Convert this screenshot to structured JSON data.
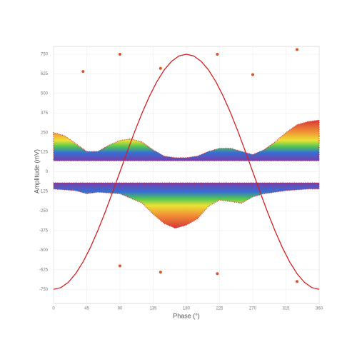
{
  "chart_data": {
    "type": "area",
    "xlabel": "Phase (°)",
    "ylabel": "Amplitude (mV)",
    "xlim": [
      0,
      360
    ],
    "xticks": [
      0,
      45,
      90,
      135,
      180,
      225,
      270,
      315,
      360
    ],
    "ylim": [
      -840,
      800
    ],
    "yticks": [
      750,
      625,
      500,
      375,
      250,
      125,
      0,
      -125,
      -250,
      -375,
      -500,
      -625,
      -750
    ],
    "grid": true,
    "series": [
      {
        "type": "area",
        "color": "#d42020",
        "floor": 70,
        "x": [
          0,
          15,
          30,
          45,
          60,
          75,
          90,
          105,
          120,
          135,
          150,
          165,
          180,
          195,
          210,
          225,
          240,
          255,
          270,
          285,
          300,
          315,
          330,
          345,
          360
        ],
        "values": [
          250,
          230,
          180,
          130,
          130,
          170,
          200,
          210,
          190,
          140,
          100,
          90,
          90,
          100,
          130,
          150,
          150,
          130,
          110,
          140,
          190,
          250,
          300,
          320,
          330
        ]
      },
      {
        "type": "area",
        "color": "#d42020",
        "floor": -70,
        "x": [
          0,
          15,
          30,
          45,
          60,
          75,
          90,
          105,
          120,
          135,
          150,
          165,
          180,
          195,
          210,
          225,
          240,
          255,
          270,
          285,
          300,
          315,
          330,
          345,
          360
        ],
        "values": [
          -110,
          -115,
          -120,
          -140,
          -130,
          -135,
          -140,
          -170,
          -200,
          -270,
          -330,
          -360,
          -340,
          -300,
          -220,
          -180,
          -190,
          -200,
          -160,
          -140,
          -130,
          -120,
          -115,
          -110,
          -110
        ]
      },
      {
        "type": "scatter",
        "color": "#e05020",
        "x": [
          40,
          90,
          145,
          222,
          270,
          330,
          90,
          145,
          222,
          330
        ],
        "values": [
          640,
          750,
          660,
          750,
          620,
          780,
          -600,
          -640,
          -650,
          -700
        ]
      },
      {
        "type": "line",
        "color": "#d42020",
        "x": [
          0,
          10,
          20,
          30,
          40,
          50,
          60,
          70,
          80,
          90,
          100,
          110,
          120,
          130,
          140,
          150,
          160,
          170,
          180,
          190,
          200,
          210,
          220,
          230,
          240,
          250,
          260,
          270,
          280,
          290,
          300,
          310,
          320,
          330,
          340,
          350,
          360
        ],
        "values": [
          -750,
          -739,
          -705,
          -650,
          -575,
          -482,
          -375,
          -257,
          -130,
          0,
          130,
          257,
          375,
          482,
          575,
          650,
          705,
          739,
          750,
          739,
          705,
          650,
          575,
          482,
          375,
          257,
          130,
          0,
          -130,
          -257,
          -375,
          -482,
          -575,
          -650,
          -705,
          -739,
          -750
        ]
      }
    ]
  }
}
